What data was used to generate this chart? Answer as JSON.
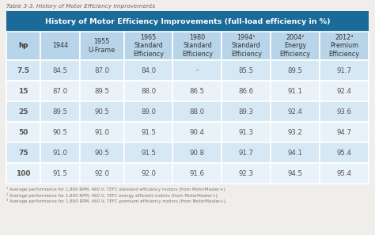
{
  "table_label": "Table 3-3. History of Motor Efficiency Improvements",
  "title": "History of Motor Efficiency Improvements (full-load efficiency in %)",
  "col_headers": [
    "hp",
    "1944",
    "1955\nU-Frame",
    "1965\nStandard\nEfficiency",
    "1980\nStandard\nEfficiency",
    "1994¹\nStandard\nEfficiency",
    "2004²\nEnergy\nEfficiency",
    "2012³\nPremium\nEfficiency"
  ],
  "rows": [
    [
      "7.5",
      "84.5",
      "87.0",
      "84.0",
      "-",
      "85.5",
      "89.5",
      "91.7"
    ],
    [
      "15",
      "87.0",
      "89.5",
      "88.0",
      "86.5",
      "86.6",
      "91.1",
      "92.4"
    ],
    [
      "25",
      "89.5",
      "90.5",
      "89.0",
      "88.0",
      "89.3",
      "92.4",
      "93.6"
    ],
    [
      "50",
      "90.5",
      "91.0",
      "91.5",
      "90.4",
      "91.3",
      "93.2",
      "94.7"
    ],
    [
      "75",
      "91.0",
      "90.5",
      "91.5",
      "90.8",
      "91.7",
      "94.1",
      "95.4"
    ],
    [
      "100",
      "91.5",
      "92.0",
      "92.0",
      "91.6",
      "92.3",
      "94.5",
      "95.4"
    ]
  ],
  "footnotes": [
    "¹ Average performance for 1,800 RPM, 460 V, TEFC standard efficiency motors (from MotorMaster+).",
    "² Average performance for 1,800 RPM, 460 V, TEFC energy efficient motors (from MotorMaster+).",
    "³ Average performance for 1,800 RPM, 460 V, TEFC premium efficiency motors (from MotorMaster+)."
  ],
  "header_bg": "#1a6b9a",
  "header_text": "#ffffff",
  "col_header_bg": "#b8d4e8",
  "row_odd_bg": "#d6e8f3",
  "row_even_bg": "#e8f2f8",
  "border_color": "#ffffff",
  "text_color": "#555555",
  "hp_text_color": "#333333",
  "table_label_color": "#666666",
  "footnote_color": "#777777",
  "bg_color": "#f0eeea"
}
